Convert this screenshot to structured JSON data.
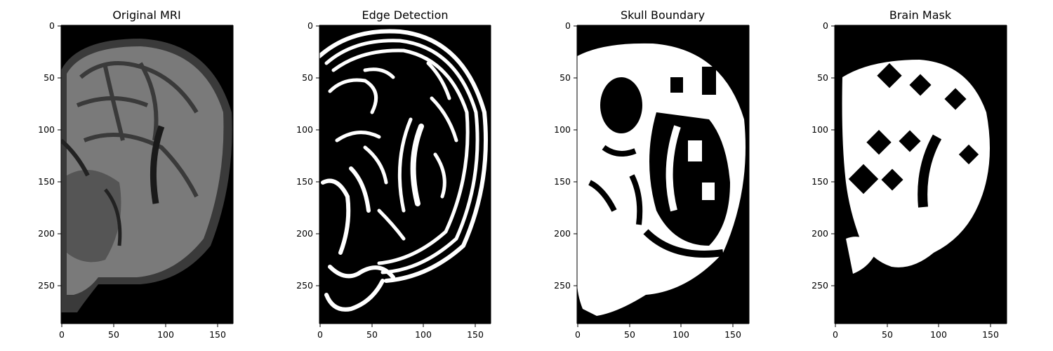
{
  "chart_data": [
    {
      "type": "heatmap",
      "title": "Original MRI",
      "colormap": "gray",
      "content": "grayscale sagittal brain MRI slice",
      "xlim": [
        0,
        166
      ],
      "ylim": [
        287,
        0
      ],
      "xticks": [
        0,
        50,
        100,
        150
      ],
      "yticks": [
        0,
        50,
        100,
        150,
        200,
        250
      ]
    },
    {
      "type": "heatmap",
      "title": "Edge Detection",
      "colormap": "binary",
      "content": "binary edge map of the MRI slice",
      "xlim": [
        0,
        166
      ],
      "ylim": [
        287,
        0
      ],
      "xticks": [
        0,
        50,
        100,
        150
      ],
      "yticks": [
        0,
        50,
        100,
        150,
        200,
        250
      ]
    },
    {
      "type": "heatmap",
      "title": "Skull Boundary",
      "colormap": "binary",
      "content": "binary skull boundary mask",
      "xlim": [
        0,
        166
      ],
      "ylim": [
        287,
        0
      ],
      "xticks": [
        0,
        50,
        100,
        150
      ],
      "yticks": [
        0,
        50,
        100,
        150,
        200,
        250
      ]
    },
    {
      "type": "heatmap",
      "title": "Brain Mask",
      "colormap": "binary",
      "content": "binary brain region mask",
      "xlim": [
        0,
        166
      ],
      "ylim": [
        287,
        0
      ],
      "xticks": [
        0,
        50,
        100,
        150
      ],
      "yticks": [
        0,
        50,
        100,
        150,
        200,
        250
      ]
    }
  ],
  "colors": {
    "background": "#000000",
    "foreground": "#ffffff",
    "gray_light": "#9a9a9a",
    "gray_mid": "#6e6e6e",
    "gray_dark": "#3a3a3a"
  }
}
